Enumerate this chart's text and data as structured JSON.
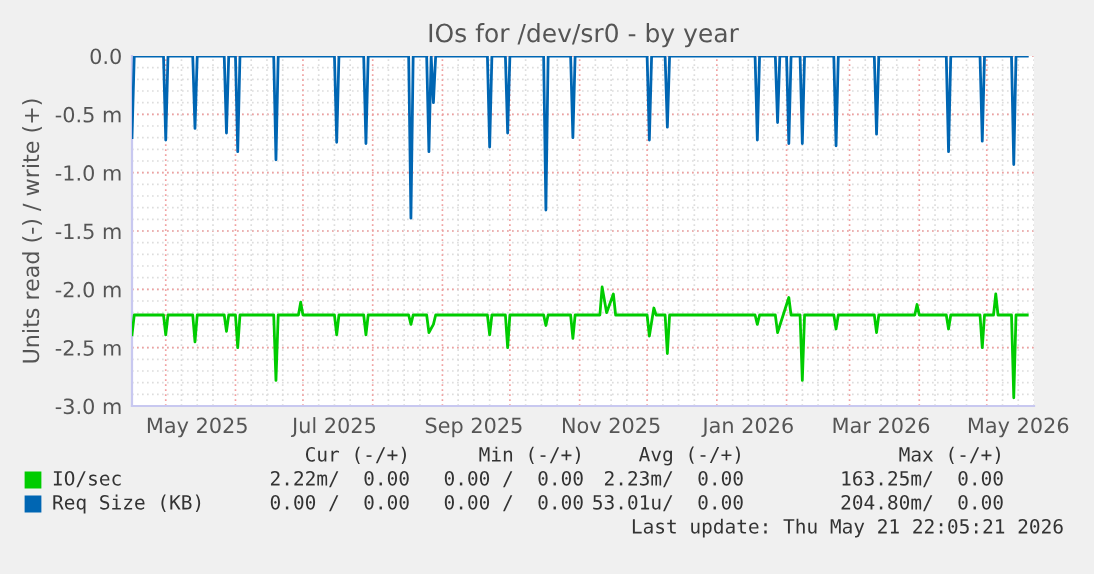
{
  "chart_data": {
    "type": "line",
    "title": "IOs for /dev/sr0 - by year",
    "ylabel": "Units read (-) / write (+)",
    "xlim": [
      "2025-04-16",
      "2026-05-22"
    ],
    "xticks": [
      {
        "value": "2025-05-15",
        "label": "May 2025"
      },
      {
        "value": "2025-07-15",
        "label": "Jul 2025"
      },
      {
        "value": "2025-09-15",
        "label": "Sep 2025"
      },
      {
        "value": "2025-11-15",
        "label": "Nov 2025"
      },
      {
        "value": "2026-01-15",
        "label": "Jan 2026"
      },
      {
        "value": "2026-03-15",
        "label": "Mar 2026"
      },
      {
        "value": "2026-05-15",
        "label": "May 2026"
      }
    ],
    "ylim": [
      -3.0,
      0.0
    ],
    "yticks": [
      {
        "value": -3.0,
        "label": "-3.0 m"
      },
      {
        "value": -2.5,
        "label": "-2.5 m"
      },
      {
        "value": -2.0,
        "label": "-2.0 m"
      },
      {
        "value": -1.5,
        "label": "-1.5 m"
      },
      {
        "value": -1.0,
        "label": "-1.0 m"
      },
      {
        "value": -0.5,
        "label": "-0.5 m"
      },
      {
        "value": 0.0,
        "label": "0.0"
      }
    ],
    "grid": true,
    "legend": "bottom",
    "series": [
      {
        "name": "IO/sec",
        "color": "#00cc00",
        "x": [
          "2025-04-16",
          "2025-04-17",
          "2025-04-30",
          "2025-05-01",
          "2025-05-02",
          "2025-05-13",
          "2025-05-14",
          "2025-05-15",
          "2025-05-27",
          "2025-05-28",
          "2025-05-29",
          "2025-06-01",
          "2025-06-02",
          "2025-06-03",
          "2025-06-18",
          "2025-06-19",
          "2025-06-20",
          "2025-06-29",
          "2025-06-30",
          "2025-07-01",
          "2025-07-15",
          "2025-07-16",
          "2025-07-17",
          "2025-07-28",
          "2025-07-29",
          "2025-07-30",
          "2025-08-17",
          "2025-08-18",
          "2025-08-19",
          "2025-08-25",
          "2025-08-26",
          "2025-08-28",
          "2025-08-29",
          "2025-09-21",
          "2025-09-22",
          "2025-09-23",
          "2025-09-29",
          "2025-09-30",
          "2025-10-01",
          "2025-10-16",
          "2025-10-17",
          "2025-10-18",
          "2025-10-28",
          "2025-10-29",
          "2025-10-30",
          "2025-11-10",
          "2025-11-11",
          "2025-11-13",
          "2025-11-16",
          "2025-11-17",
          "2025-12-01",
          "2025-12-02",
          "2025-12-04",
          "2025-12-05",
          "2025-12-09",
          "2025-12-10",
          "2025-12-11",
          "2026-01-18",
          "2026-01-19",
          "2026-01-20",
          "2026-01-27",
          "2026-01-28",
          "2026-02-02",
          "2026-02-03",
          "2026-02-07",
          "2026-02-08",
          "2026-02-09",
          "2026-02-22",
          "2026-02-23",
          "2026-02-24",
          "2026-03-12",
          "2026-03-13",
          "2026-03-14",
          "2026-03-30",
          "2026-03-31",
          "2026-04-01",
          "2026-04-13",
          "2026-04-14",
          "2026-04-15",
          "2026-04-28",
          "2026-04-29",
          "2026-04-30",
          "2026-05-04",
          "2026-05-05",
          "2026-05-06",
          "2026-05-12",
          "2026-05-13",
          "2026-05-14",
          "2026-05-19"
        ],
        "values": [
          -2.39,
          -2.22,
          -2.22,
          -2.39,
          -2.22,
          -2.22,
          -2.45,
          -2.22,
          -2.22,
          -2.36,
          -2.22,
          -2.22,
          -2.5,
          -2.22,
          -2.22,
          -2.78,
          -2.22,
          -2.22,
          -2.11,
          -2.22,
          -2.22,
          -2.39,
          -2.22,
          -2.22,
          -2.39,
          -2.22,
          -2.22,
          -2.3,
          -2.22,
          -2.22,
          -2.37,
          -2.3,
          -2.22,
          -2.22,
          -2.39,
          -2.22,
          -2.22,
          -2.5,
          -2.22,
          -2.22,
          -2.31,
          -2.22,
          -2.22,
          -2.42,
          -2.22,
          -2.22,
          -1.98,
          -2.2,
          -2.04,
          -2.22,
          -2.22,
          -2.4,
          -2.16,
          -2.22,
          -2.22,
          -2.55,
          -2.22,
          -2.22,
          -2.3,
          -2.22,
          -2.22,
          -2.37,
          -2.07,
          -2.22,
          -2.22,
          -2.78,
          -2.22,
          -2.22,
          -2.34,
          -2.22,
          -2.22,
          -2.37,
          -2.22,
          -2.22,
          -2.13,
          -2.22,
          -2.22,
          -2.34,
          -2.22,
          -2.22,
          -2.5,
          -2.22,
          -2.22,
          -2.04,
          -2.22,
          -2.22,
          -2.93,
          -2.22,
          -2.22
        ]
      },
      {
        "name": "Req Size (KB)",
        "color": "#0066b3",
        "x": [
          "2025-04-16",
          "2025-04-17",
          "2025-04-30",
          "2025-05-01",
          "2025-05-02",
          "2025-05-13",
          "2025-05-14",
          "2025-05-15",
          "2025-05-27",
          "2025-05-28",
          "2025-05-29",
          "2025-06-01",
          "2025-06-02",
          "2025-06-03",
          "2025-06-18",
          "2025-06-19",
          "2025-06-20",
          "2025-07-15",
          "2025-07-16",
          "2025-07-17",
          "2025-07-28",
          "2025-07-29",
          "2025-07-30",
          "2025-08-17",
          "2025-08-18",
          "2025-08-19",
          "2025-08-25",
          "2025-08-26",
          "2025-08-27",
          "2025-08-28",
          "2025-08-29",
          "2025-09-21",
          "2025-09-22",
          "2025-09-23",
          "2025-09-29",
          "2025-09-30",
          "2025-10-01",
          "2025-10-16",
          "2025-10-17",
          "2025-10-18",
          "2025-10-28",
          "2025-10-29",
          "2025-10-30",
          "2025-12-01",
          "2025-12-02",
          "2025-12-03",
          "2025-12-09",
          "2025-12-10",
          "2025-12-11",
          "2026-01-18",
          "2026-01-19",
          "2026-01-20",
          "2026-01-27",
          "2026-01-28",
          "2026-01-29",
          "2026-02-01",
          "2026-02-02",
          "2026-02-03",
          "2026-02-07",
          "2026-02-08",
          "2026-02-09",
          "2026-02-22",
          "2026-02-23",
          "2026-02-24",
          "2026-03-12",
          "2026-03-13",
          "2026-03-14",
          "2026-04-13",
          "2026-04-14",
          "2026-04-15",
          "2026-04-28",
          "2026-04-29",
          "2026-04-30",
          "2026-05-12",
          "2026-05-13",
          "2026-05-14",
          "2026-05-19"
        ],
        "values": [
          -0.7,
          0.0,
          0.0,
          -0.72,
          0.0,
          0.0,
          -0.62,
          0.0,
          0.0,
          -0.66,
          0.0,
          0.0,
          -0.82,
          0.0,
          0.0,
          -0.89,
          0.0,
          0.0,
          -0.74,
          0.0,
          0.0,
          -0.75,
          0.0,
          0.0,
          -1.39,
          0.0,
          0.0,
          -0.82,
          0.0,
          -0.4,
          0.0,
          0.0,
          -0.78,
          0.0,
          0.0,
          -0.66,
          0.0,
          0.0,
          -1.32,
          0.0,
          0.0,
          -0.7,
          0.0,
          0.0,
          -0.72,
          0.0,
          0.0,
          -0.61,
          0.0,
          0.0,
          -0.72,
          0.0,
          0.0,
          -0.57,
          0.0,
          0.0,
          -0.75,
          0.0,
          0.0,
          -0.75,
          0.0,
          0.0,
          -0.77,
          0.0,
          0.0,
          -0.67,
          0.0,
          0.0,
          -0.82,
          0.0,
          0.0,
          -0.73,
          0.0,
          0.0,
          -0.93,
          0.0,
          0.0
        ]
      }
    ],
    "annotations": [
      "Cur (-/+)",
      "Min (-/+)",
      "Avg (-/+)",
      "Max (-/+)",
      "2.22m/  0.00",
      "0.00 /  0.00",
      "2.23m/  0.00",
      "163.25m/  0.00",
      "0.00 /  0.00",
      "0.00 /  0.00",
      "53.01u/  0.00",
      "204.80m/  0.00",
      "Last update: Thu May 21 22:05:21 2026"
    ]
  }
}
